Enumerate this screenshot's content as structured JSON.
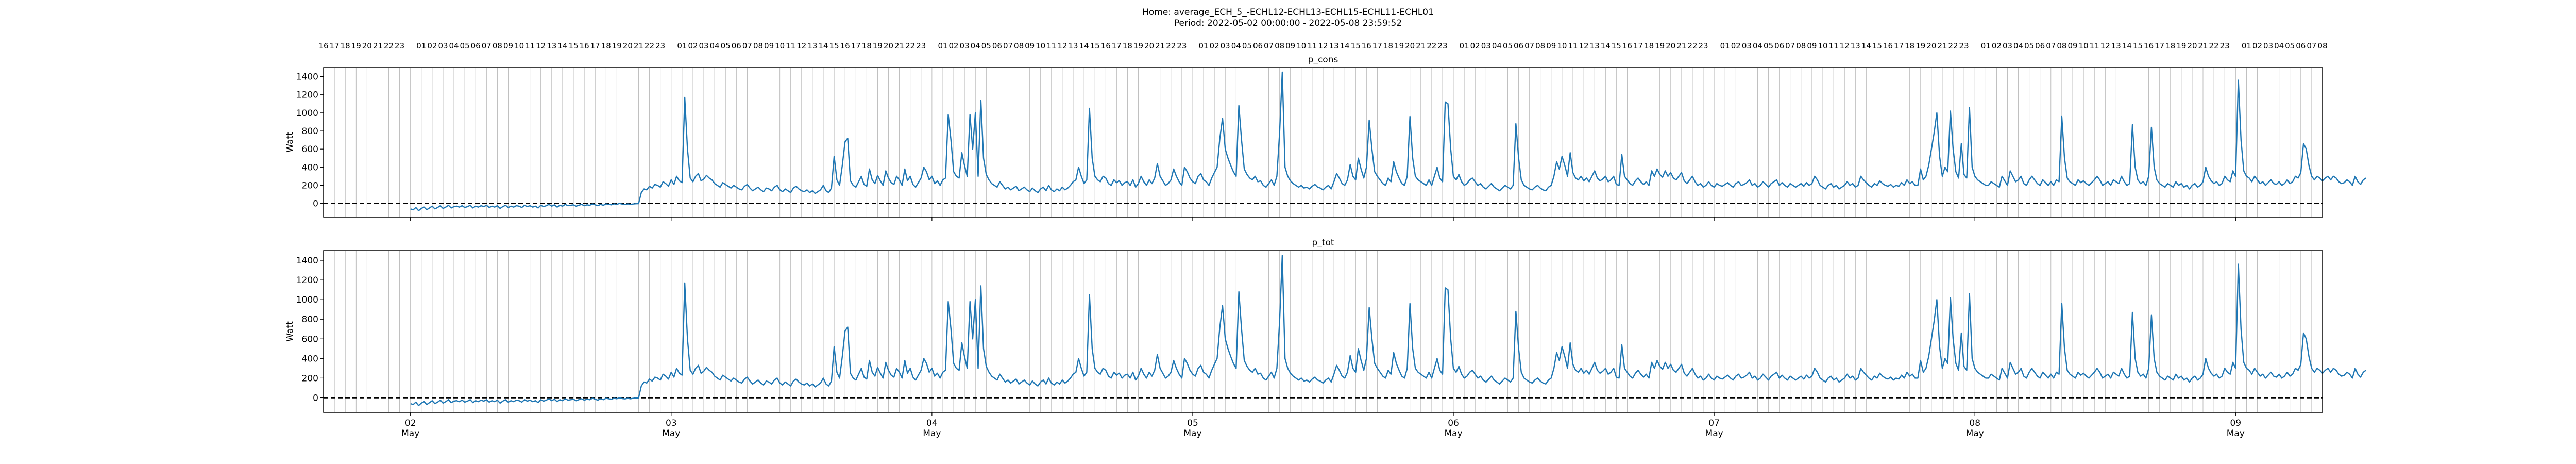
{
  "figure": {
    "title_line1": "Home: average_ECH_5_-ECHL12-ECHL13-ECHL15-ECHL11-ECHL01",
    "title_line2": "Period: 2022-05-02 00:00:00 - 2022-05-08 23:59:52"
  },
  "colors": {
    "line": "#1f77b4",
    "zero_line": "#000000",
    "grid": "#b0b0b0"
  },
  "chart_data": [
    {
      "type": "line",
      "title": "p_cons",
      "ylabel": "Watt",
      "xlabel": "",
      "xlim": [
        "2022-05-01 16:00",
        "2022-05-09 08:00"
      ],
      "ylim": [
        -150,
        1500
      ],
      "yticks": [
        0,
        200,
        400,
        600,
        800,
        1000,
        1200,
        1400
      ],
      "grid": "vertical hourly lines",
      "reference_line": {
        "y": 0,
        "style": "dashed"
      },
      "bottom_ticks": [
        {
          "x": "2022-05-02 00:00",
          "day": "02",
          "month": "May"
        },
        {
          "x": "2022-05-03 00:00",
          "day": "03",
          "month": "May"
        },
        {
          "x": "2022-05-04 00:00",
          "day": "04",
          "month": "May"
        },
        {
          "x": "2022-05-05 00:00",
          "day": "05",
          "month": "May"
        },
        {
          "x": "2022-05-06 00:00",
          "day": "06",
          "month": "May"
        },
        {
          "x": "2022-05-07 00:00",
          "day": "07",
          "month": "May"
        },
        {
          "x": "2022-05-08 00:00",
          "day": "08",
          "month": "May"
        },
        {
          "x": "2022-05-09 00:00",
          "day": "09",
          "month": "May"
        }
      ],
      "top_hour_labels": "hourly 01–23 within each day; 16–23 before 02 May; 01–08 after 09 May",
      "series": [
        {
          "x_start": "2022-05-02 00:00",
          "x_step_minutes": 15,
          "values": [
            -60,
            -70,
            -45,
            -80,
            -55,
            -40,
            -70,
            -50,
            -30,
            -60,
            -45,
            -25,
            -55,
            -40,
            -20,
            -50,
            -35,
            -30,
            -40,
            -25,
            -45,
            -35,
            -20,
            -50,
            -30,
            -40,
            -25,
            -35,
            -20,
            -45,
            -30,
            -40,
            -25,
            -55,
            -35,
            -20,
            -45,
            -30,
            -40,
            -25,
            -30,
            -45,
            -20,
            -35,
            -25,
            -40,
            -30,
            -50,
            -20,
            -35,
            -25,
            -10,
            -30,
            -15,
            -40,
            -20,
            -30,
            -10,
            -25,
            -20,
            -15,
            -30,
            -20,
            -10,
            -25,
            -15,
            -20,
            -5,
            -15,
            -25,
            -10,
            -20,
            -5,
            -10,
            -15,
            -5,
            -10,
            0,
            -8,
            -12,
            -5,
            -10,
            -6,
            -3,
            -2,
            120,
            160,
            150,
            190,
            170,
            210,
            200,
            180,
            240,
            220,
            190,
            260,
            210,
            300,
            250,
            230,
            1170,
            600,
            280,
            240,
            300,
            330,
            250,
            270,
            310,
            280,
            260,
            220,
            200,
            180,
            230,
            210,
            190,
            170,
            200,
            180,
            160,
            150,
            190,
            210,
            170,
            140,
            160,
            180,
            150,
            130,
            170,
            160,
            140,
            180,
            200,
            150,
            130,
            160,
            140,
            120,
            170,
            190,
            160,
            140,
            130,
            150,
            120,
            140,
            110,
            130,
            150,
            200,
            140,
            120,
            170,
            520,
            260,
            200,
            420,
            680,
            720,
            250,
            200,
            180,
            240,
            300,
            210,
            190,
            380,
            260,
            220,
            310,
            250,
            200,
            360,
            280,
            230,
            210,
            300,
            260,
            200,
            380,
            250,
            300,
            210,
            180,
            230,
            280,
            400,
            350,
            260,
            300,
            220,
            250,
            200,
            260,
            280,
            980,
            700,
            350,
            300,
            280,
            560,
            420,
            300,
            980,
            600,
            1000,
            300,
            1140,
            500,
            320,
            260,
            220,
            200,
            180,
            240,
            200,
            160,
            180,
            150,
            170,
            190,
            140,
            160,
            180,
            150,
            130,
            170,
            140,
            120,
            160,
            180,
            140,
            200,
            150,
            130,
            160,
            140,
            180,
            150,
            170,
            200,
            240,
            260,
            400,
            300,
            220,
            260,
            1050,
            500,
            300,
            260,
            240,
            300,
            280,
            220,
            200,
            260,
            230,
            250,
            200,
            230,
            240,
            200,
            260,
            180,
            220,
            300,
            240,
            200,
            260,
            220,
            280,
            440,
            300,
            250,
            200,
            220,
            260,
            380,
            300,
            240,
            200,
            400,
            350,
            280,
            240,
            220,
            300,
            330,
            260,
            240,
            200,
            280,
            340,
            400,
            720,
            940,
            600,
            500,
            420,
            350,
            300,
            1080,
            700,
            380,
            320,
            280,
            260,
            300,
            240,
            250,
            200,
            180,
            220,
            260,
            200,
            300,
            780,
            1450,
            400,
            300,
            250,
            220,
            200,
            180,
            200,
            170,
            180,
            160,
            190,
            210,
            180,
            170,
            150,
            180,
            200,
            160,
            240,
            330,
            280,
            220,
            200,
            260,
            430,
            300,
            260,
            500,
            380,
            280,
            400,
            920,
            600,
            350,
            300,
            260,
            220,
            200,
            280,
            240,
            460,
            350,
            280,
            220,
            200,
            300,
            960,
            500,
            300,
            260,
            240,
            220,
            200,
            260,
            200,
            300,
            400,
            280,
            240,
            1120,
            1100,
            600,
            300,
            260,
            320,
            240,
            200,
            220,
            260,
            280,
            240,
            200,
            220,
            180,
            160,
            190,
            220,
            180,
            160,
            140,
            170,
            200,
            180,
            160,
            200,
            880,
            500,
            260,
            200,
            180,
            160,
            150,
            180,
            200,
            170,
            150,
            140,
            180,
            200,
            300,
            460,
            380,
            520,
            420,
            300,
            560,
            340,
            280,
            260,
            300,
            250,
            280,
            240,
            300,
            360,
            280,
            250,
            270,
            300,
            240,
            260,
            300,
            210,
            200,
            540,
            300,
            260,
            220,
            200,
            250,
            280,
            240,
            210,
            240,
            200,
            360,
            300,
            380,
            320,
            290,
            360,
            300,
            340,
            280,
            260,
            300,
            340,
            250,
            220,
            260,
            300,
            240,
            200,
            220,
            180,
            200,
            240,
            200,
            180,
            220,
            200,
            190,
            210,
            230,
            200,
            180,
            220,
            240,
            200,
            210,
            230,
            260,
            200,
            220,
            180,
            200,
            240,
            210,
            180,
            220,
            240,
            260,
            200,
            230,
            200,
            180,
            220,
            200,
            180,
            200,
            220,
            190,
            230,
            200,
            220,
            300,
            260,
            200,
            180,
            160,
            200,
            220,
            180,
            200,
            160,
            180,
            200,
            240,
            200,
            220,
            180,
            200,
            300,
            260,
            230,
            200,
            180,
            220,
            200,
            250,
            220,
            200,
            190,
            210,
            180,
            200,
            190,
            230,
            200,
            260,
            220,
            240,
            200,
            200,
            380,
            260,
            300,
            420,
            600,
            780,
            1000,
            520,
            300,
            400,
            350,
            1020,
            600,
            350,
            280,
            660,
            320,
            280,
            1060,
            400,
            300,
            260,
            240,
            220,
            200,
            200,
            240,
            220,
            200,
            180,
            300,
            250,
            200,
            360,
            300,
            240,
            260,
            300,
            220,
            200,
            260,
            300,
            260,
            220,
            200,
            260,
            230,
            200,
            240,
            200,
            260,
            240,
            960,
            500,
            280,
            240,
            220,
            200,
            260,
            230,
            250,
            220,
            200,
            230,
            260,
            300,
            260,
            200,
            220,
            240,
            200,
            260,
            240,
            220,
            300,
            240,
            200,
            220,
            870,
            400,
            260,
            220,
            240,
            200,
            300,
            840,
            400,
            260,
            220,
            200,
            180,
            220,
            200,
            180,
            240,
            200,
            220,
            180,
            200,
            160,
            200,
            220,
            180,
            200,
            240,
            400,
            300,
            250,
            220,
            240,
            200,
            220,
            300,
            260,
            240,
            360,
            300,
            1360,
            700,
            360,
            300,
            280,
            240,
            300,
            260,
            220,
            240,
            200,
            230,
            260,
            220,
            210,
            240,
            200,
            220,
            260,
            220,
            240,
            300,
            280,
            340,
            660,
            600,
            420,
            300,
            260,
            300,
            280,
            250,
            280,
            300,
            260,
            300,
            280,
            240,
            220,
            230,
            260,
            240,
            200,
            300,
            240,
            210,
            260,
            280
          ]
        }
      ]
    },
    {
      "type": "line",
      "title": "p_tot",
      "ylabel": "Watt",
      "xlabel": "",
      "xlim": [
        "2022-05-01 16:00",
        "2022-05-09 08:00"
      ],
      "ylim": [
        -150,
        1500
      ],
      "yticks": [
        0,
        200,
        400,
        600,
        800,
        1000,
        1200,
        1400
      ],
      "grid": "vertical hourly lines",
      "reference_line": {
        "y": 0,
        "style": "dashed"
      },
      "series": [
        {
          "same_as": "p_cons"
        }
      ]
    }
  ]
}
